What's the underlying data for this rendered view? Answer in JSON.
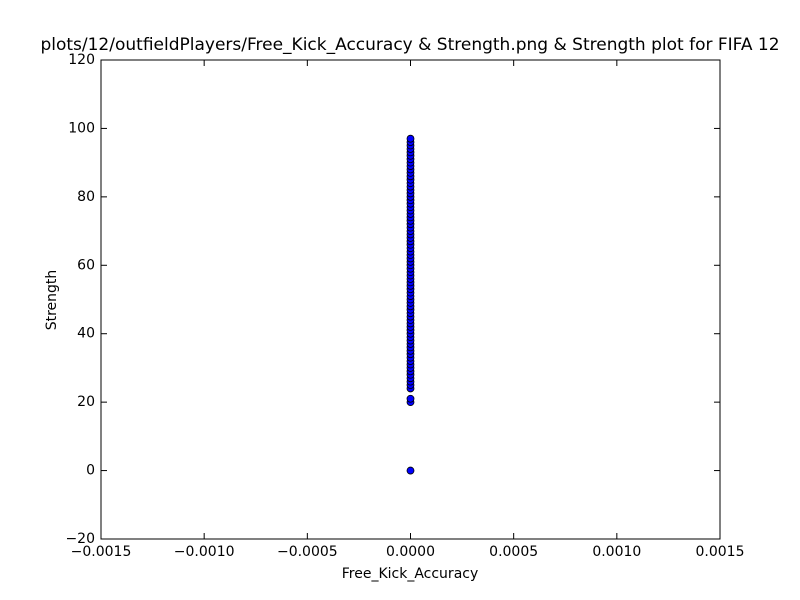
{
  "chart_data": {
    "type": "scatter",
    "title": "plots/12/outfieldPlayers/Free_Kick_Accuracy & Strength.png & Strength plot for FIFA 12",
    "x_label": "Free_Kick_Accuracy",
    "y_label": "Strength",
    "color": "#0000ff",
    "xlim": [
      -0.0015,
      0.0015
    ],
    "xticks": [
      {
        "value": -0.0015,
        "label": "−0.0015"
      },
      {
        "value": -0.001,
        "label": "−0.0010"
      },
      {
        "value": -0.0005,
        "label": "−0.0005"
      },
      {
        "value": 0,
        "label": "0.0000"
      },
      0.0005,
      {
        "value": 0.001,
        "label": "0.0010"
      },
      0.0015
    ],
    "ylim": [
      -20,
      120
    ],
    "yticks": [
      {
        "value": -20,
        "label": "−20"
      },
      0,
      20,
      40,
      60,
      80,
      100,
      120
    ],
    "grid": false,
    "series": [
      {
        "name": "Strength",
        "x": [
          0,
          0,
          0,
          0,
          0,
          0,
          0,
          0,
          0,
          0,
          0,
          0,
          0,
          0,
          0,
          0,
          0,
          0,
          0,
          0,
          0,
          0,
          0,
          0,
          0,
          0,
          0,
          0,
          0,
          0,
          0,
          0,
          0,
          0,
          0,
          0,
          0,
          0,
          0,
          0,
          0,
          0,
          0,
          0,
          0,
          0,
          0,
          0,
          0,
          0,
          0,
          0,
          0,
          0,
          0,
          0,
          0,
          0,
          0,
          0,
          0,
          0,
          0,
          0,
          0,
          0,
          0,
          0,
          0,
          0,
          0,
          0,
          0,
          0,
          0,
          0,
          0
        ],
        "values": [
          0,
          20,
          21,
          24,
          25,
          26,
          27,
          28,
          29,
          30,
          31,
          32,
          33,
          34,
          35,
          36,
          37,
          38,
          39,
          40,
          41,
          42,
          43,
          44,
          45,
          46,
          47,
          48,
          49,
          50,
          51,
          52,
          53,
          54,
          55,
          56,
          57,
          58,
          59,
          60,
          61,
          62,
          63,
          64,
          65,
          66,
          67,
          68,
          69,
          70,
          71,
          72,
          73,
          74,
          75,
          76,
          77,
          78,
          79,
          80,
          81,
          82,
          83,
          84,
          85,
          86,
          87,
          88,
          89,
          90,
          91,
          92,
          93,
          94,
          95,
          96,
          97
        ]
      }
    ]
  }
}
